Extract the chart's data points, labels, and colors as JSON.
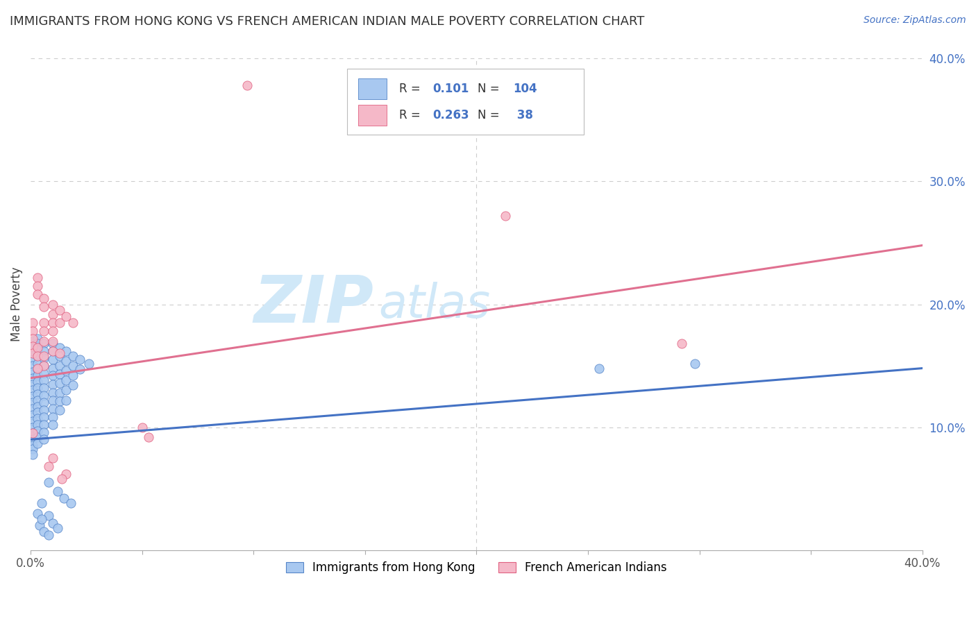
{
  "title": "IMMIGRANTS FROM HONG KONG VS FRENCH AMERICAN INDIAN MALE POVERTY CORRELATION CHART",
  "source": "Source: ZipAtlas.com",
  "ylabel": "Male Poverty",
  "xlim": [
    0.0,
    0.4
  ],
  "ylim": [
    0.0,
    0.4
  ],
  "blue_color": "#A8C8F0",
  "pink_color": "#F5B8C8",
  "blue_edge_color": "#5585C8",
  "pink_edge_color": "#E06080",
  "blue_line_color": "#4472C4",
  "pink_line_color": "#E07090",
  "accent_blue": "#4472C4",
  "accent_red": "#C0392B",
  "watermark_color": "#D0E8F8",
  "grid_color": "#CCCCCC",
  "blue_trend_x": [
    0.0,
    0.4
  ],
  "blue_trend_y": [
    0.09,
    0.148
  ],
  "pink_trend_x": [
    0.0,
    0.4
  ],
  "pink_trend_y": [
    0.14,
    0.248
  ],
  "blue_scatter": [
    [
      0.001,
      0.17
    ],
    [
      0.001,
      0.165
    ],
    [
      0.001,
      0.16
    ],
    [
      0.001,
      0.155
    ],
    [
      0.001,
      0.15
    ],
    [
      0.001,
      0.145
    ],
    [
      0.001,
      0.14
    ],
    [
      0.001,
      0.135
    ],
    [
      0.001,
      0.13
    ],
    [
      0.001,
      0.125
    ],
    [
      0.001,
      0.12
    ],
    [
      0.001,
      0.115
    ],
    [
      0.001,
      0.11
    ],
    [
      0.001,
      0.105
    ],
    [
      0.001,
      0.1
    ],
    [
      0.001,
      0.095
    ],
    [
      0.001,
      0.09
    ],
    [
      0.001,
      0.085
    ],
    [
      0.001,
      0.082
    ],
    [
      0.001,
      0.078
    ],
    [
      0.003,
      0.172
    ],
    [
      0.003,
      0.168
    ],
    [
      0.003,
      0.163
    ],
    [
      0.003,
      0.158
    ],
    [
      0.003,
      0.152
    ],
    [
      0.003,
      0.147
    ],
    [
      0.003,
      0.142
    ],
    [
      0.003,
      0.137
    ],
    [
      0.003,
      0.132
    ],
    [
      0.003,
      0.127
    ],
    [
      0.003,
      0.122
    ],
    [
      0.003,
      0.117
    ],
    [
      0.003,
      0.112
    ],
    [
      0.003,
      0.107
    ],
    [
      0.003,
      0.102
    ],
    [
      0.003,
      0.097
    ],
    [
      0.003,
      0.092
    ],
    [
      0.003,
      0.087
    ],
    [
      0.006,
      0.168
    ],
    [
      0.006,
      0.162
    ],
    [
      0.006,
      0.156
    ],
    [
      0.006,
      0.15
    ],
    [
      0.006,
      0.144
    ],
    [
      0.006,
      0.138
    ],
    [
      0.006,
      0.132
    ],
    [
      0.006,
      0.126
    ],
    [
      0.006,
      0.12
    ],
    [
      0.006,
      0.114
    ],
    [
      0.006,
      0.108
    ],
    [
      0.006,
      0.102
    ],
    [
      0.006,
      0.096
    ],
    [
      0.006,
      0.09
    ],
    [
      0.01,
      0.168
    ],
    [
      0.01,
      0.162
    ],
    [
      0.01,
      0.155
    ],
    [
      0.01,
      0.148
    ],
    [
      0.01,
      0.142
    ],
    [
      0.01,
      0.135
    ],
    [
      0.01,
      0.128
    ],
    [
      0.01,
      0.122
    ],
    [
      0.01,
      0.115
    ],
    [
      0.01,
      0.108
    ],
    [
      0.01,
      0.102
    ],
    [
      0.013,
      0.165
    ],
    [
      0.013,
      0.158
    ],
    [
      0.013,
      0.15
    ],
    [
      0.013,
      0.143
    ],
    [
      0.013,
      0.136
    ],
    [
      0.013,
      0.128
    ],
    [
      0.013,
      0.121
    ],
    [
      0.013,
      0.114
    ],
    [
      0.016,
      0.162
    ],
    [
      0.016,
      0.154
    ],
    [
      0.016,
      0.146
    ],
    [
      0.016,
      0.138
    ],
    [
      0.016,
      0.13
    ],
    [
      0.016,
      0.122
    ],
    [
      0.019,
      0.158
    ],
    [
      0.019,
      0.15
    ],
    [
      0.019,
      0.142
    ],
    [
      0.019,
      0.134
    ],
    [
      0.022,
      0.155
    ],
    [
      0.022,
      0.147
    ],
    [
      0.026,
      0.152
    ],
    [
      0.008,
      0.055
    ],
    [
      0.012,
      0.048
    ],
    [
      0.015,
      0.042
    ],
    [
      0.018,
      0.038
    ],
    [
      0.005,
      0.038
    ],
    [
      0.008,
      0.028
    ],
    [
      0.01,
      0.022
    ],
    [
      0.012,
      0.018
    ],
    [
      0.004,
      0.02
    ],
    [
      0.006,
      0.015
    ],
    [
      0.008,
      0.012
    ],
    [
      0.003,
      0.03
    ],
    [
      0.005,
      0.025
    ],
    [
      0.255,
      0.148
    ],
    [
      0.298,
      0.152
    ]
  ],
  "pink_scatter": [
    [
      0.001,
      0.185
    ],
    [
      0.001,
      0.178
    ],
    [
      0.001,
      0.172
    ],
    [
      0.001,
      0.166
    ],
    [
      0.001,
      0.16
    ],
    [
      0.001,
      0.095
    ],
    [
      0.003,
      0.222
    ],
    [
      0.003,
      0.215
    ],
    [
      0.003,
      0.208
    ],
    [
      0.003,
      0.165
    ],
    [
      0.003,
      0.158
    ],
    [
      0.006,
      0.205
    ],
    [
      0.006,
      0.198
    ],
    [
      0.006,
      0.185
    ],
    [
      0.006,
      0.178
    ],
    [
      0.006,
      0.17
    ],
    [
      0.006,
      0.158
    ],
    [
      0.006,
      0.15
    ],
    [
      0.01,
      0.2
    ],
    [
      0.01,
      0.192
    ],
    [
      0.01,
      0.185
    ],
    [
      0.01,
      0.178
    ],
    [
      0.01,
      0.17
    ],
    [
      0.01,
      0.162
    ],
    [
      0.01,
      0.075
    ],
    [
      0.013,
      0.195
    ],
    [
      0.013,
      0.185
    ],
    [
      0.013,
      0.16
    ],
    [
      0.016,
      0.19
    ],
    [
      0.016,
      0.062
    ],
    [
      0.019,
      0.185
    ],
    [
      0.05,
      0.1
    ],
    [
      0.053,
      0.092
    ],
    [
      0.097,
      0.378
    ],
    [
      0.213,
      0.272
    ],
    [
      0.292,
      0.168
    ],
    [
      0.003,
      0.148
    ],
    [
      0.008,
      0.068
    ],
    [
      0.014,
      0.058
    ]
  ]
}
